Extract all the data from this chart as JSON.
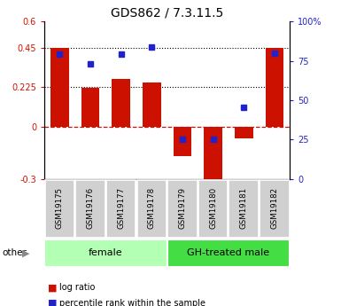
{
  "title": "GDS862 / 7.3.11.5",
  "samples": [
    "GSM19175",
    "GSM19176",
    "GSM19177",
    "GSM19178",
    "GSM19179",
    "GSM19180",
    "GSM19181",
    "GSM19182"
  ],
  "log_ratio": [
    0.45,
    0.22,
    0.27,
    0.25,
    -0.17,
    -0.35,
    -0.07,
    0.45
  ],
  "percentile_rank_val": [
    0.415,
    0.36,
    0.415,
    0.455,
    -0.075,
    -0.075,
    0.11,
    0.42
  ],
  "ylim": [
    -0.3,
    0.6
  ],
  "yticks_left": [
    -0.3,
    0,
    0.225,
    0.45,
    0.6
  ],
  "ytick_labels_left": [
    "-0.3",
    "0",
    "0.225",
    "0.45",
    "0.6"
  ],
  "yticks_right_pct": [
    0,
    25,
    50,
    75,
    100
  ],
  "ytick_labels_right": [
    "0",
    "25",
    "50",
    "75",
    "100%"
  ],
  "hlines_dotted": [
    0.225,
    0.45
  ],
  "bar_color": "#cc1100",
  "square_color": "#2222cc",
  "zero_line_color": "#cc1100",
  "groups": [
    {
      "label": "female",
      "start": 0,
      "end": 4,
      "color": "#b3ffb3"
    },
    {
      "label": "GH-treated male",
      "start": 4,
      "end": 8,
      "color": "#44dd44"
    }
  ],
  "other_label": "other",
  "legend_log_ratio": "log ratio",
  "legend_percentile": "percentile rank within the sample",
  "bar_width": 0.6,
  "bg_color": "#ffffff"
}
